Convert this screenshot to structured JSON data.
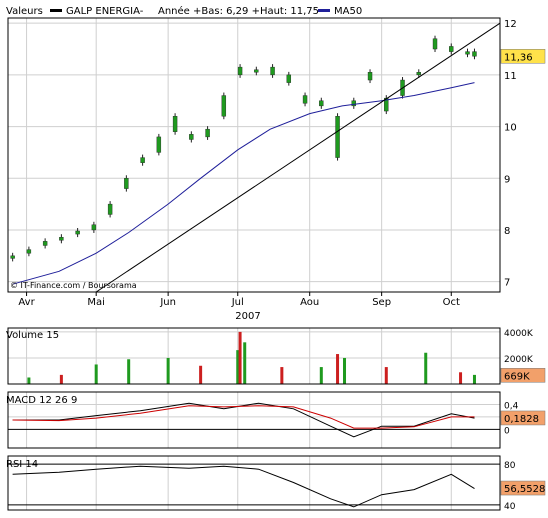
{
  "header": {
    "label": "Valeurs",
    "security": "GALP ENERGIA-",
    "range_text": "Année +Bas: 6,29 +Haut: 11,75",
    "ma_label": "MA50"
  },
  "footer": {
    "credit": "© IT-Finance.com / Boursorama",
    "year": "2007"
  },
  "months": [
    {
      "label": "Avr",
      "x": "2007-04-01"
    },
    {
      "label": "Mai",
      "x": "2007-05-01"
    },
    {
      "label": "Jun",
      "x": "2007-06-01"
    },
    {
      "label": "Jul",
      "x": "2007-07-01"
    },
    {
      "label": "Aou",
      "x": "2007-08-01"
    },
    {
      "label": "Sep",
      "x": "2007-09-01"
    },
    {
      "label": "Oct",
      "x": "2007-10-01"
    }
  ],
  "colors": {
    "up": "#1f9a1f",
    "down": "#cc1f1f",
    "ma": "#1f1f9a",
    "grid": "#cfcfcf",
    "price_tag": "#ffe24a",
    "value_tag": "#f2a06a",
    "macd": "#000000",
    "signal": "#cc0000",
    "rsi": "#000000",
    "frame": "#000000"
  },
  "chart_data": [
    {
      "type": "candlestick",
      "panel": "price",
      "ylim": [
        6.8,
        12.1
      ],
      "yticks": [
        7,
        8,
        9,
        10,
        11,
        12
      ],
      "xlim": [
        "2007-03-24",
        "2007-10-22"
      ],
      "last_value": "11,36",
      "series": [
        {
          "name": "GALP ENERGIA-",
          "points": [
            [
              "2007-03-26",
              7.45,
              7.5
            ],
            [
              "2007-04-02",
              7.55,
              7.62
            ],
            [
              "2007-04-09",
              7.7,
              7.78
            ],
            [
              "2007-04-16",
              7.8,
              7.86
            ],
            [
              "2007-04-23",
              7.92,
              7.98
            ],
            [
              "2007-04-30",
              8.0,
              8.1
            ],
            [
              "2007-05-07",
              8.3,
              8.5
            ],
            [
              "2007-05-14",
              8.8,
              9.0
            ],
            [
              "2007-05-21",
              9.3,
              9.4
            ],
            [
              "2007-05-28",
              9.5,
              9.8
            ],
            [
              "2007-06-04",
              9.9,
              10.2
            ],
            [
              "2007-06-11",
              9.75,
              9.85
            ],
            [
              "2007-06-18",
              9.8,
              9.95
            ],
            [
              "2007-06-25",
              10.2,
              10.6
            ],
            [
              "2007-07-02",
              11.0,
              11.15
            ],
            [
              "2007-07-09",
              11.05,
              11.1
            ],
            [
              "2007-07-16",
              11.0,
              11.15
            ],
            [
              "2007-07-23",
              10.85,
              11.0
            ],
            [
              "2007-07-30",
              10.45,
              10.6
            ],
            [
              "2007-08-06",
              10.4,
              10.5
            ],
            [
              "2007-08-13",
              9.4,
              10.2
            ],
            [
              "2007-08-20",
              10.4,
              10.5
            ],
            [
              "2007-08-27",
              10.9,
              11.05
            ],
            [
              "2007-09-03",
              10.3,
              10.55
            ],
            [
              "2007-09-10",
              10.6,
              10.9
            ],
            [
              "2007-09-17",
              11.0,
              11.05
            ],
            [
              "2007-09-24",
              11.5,
              11.7
            ],
            [
              "2007-10-01",
              11.45,
              11.55
            ],
            [
              "2007-10-08",
              11.4,
              11.45
            ],
            [
              "2007-10-11",
              11.36,
              11.45
            ]
          ]
        },
        {
          "name": "MA50",
          "points": [
            [
              "2007-03-26",
              6.95
            ],
            [
              "2007-04-15",
              7.2
            ],
            [
              "2007-05-01",
              7.55
            ],
            [
              "2007-05-15",
              7.95
            ],
            [
              "2007-06-01",
              8.5
            ],
            [
              "2007-06-15",
              9.0
            ],
            [
              "2007-07-01",
              9.55
            ],
            [
              "2007-07-15",
              9.95
            ],
            [
              "2007-08-01",
              10.25
            ],
            [
              "2007-08-15",
              10.4
            ],
            [
              "2007-09-01",
              10.5
            ],
            [
              "2007-09-15",
              10.6
            ],
            [
              "2007-10-01",
              10.75
            ],
            [
              "2007-10-11",
              10.85
            ]
          ]
        },
        {
          "name": "trendline",
          "points": [
            [
              "2007-05-01",
              6.8
            ],
            [
              "2007-10-22",
              12.0
            ]
          ]
        }
      ]
    },
    {
      "type": "bar",
      "panel": "volume",
      "title": "Volume 15",
      "ylim": [
        0,
        4300000
      ],
      "yticks": [
        {
          "v": 2000000,
          "label": "2000K"
        },
        {
          "v": 4000000,
          "label": "4000K"
        }
      ],
      "last_value": "669K",
      "values": [
        [
          "2007-04-02",
          500000,
          "up"
        ],
        [
          "2007-04-16",
          700000,
          "down"
        ],
        [
          "2007-05-01",
          1500000,
          "up"
        ],
        [
          "2007-05-15",
          1900000,
          "up"
        ],
        [
          "2007-06-01",
          2000000,
          "up"
        ],
        [
          "2007-06-15",
          1400000,
          "down"
        ],
        [
          "2007-07-01",
          2600000,
          "up"
        ],
        [
          "2007-07-02",
          4000000,
          "down"
        ],
        [
          "2007-07-04",
          3200000,
          "up"
        ],
        [
          "2007-07-20",
          1300000,
          "down"
        ],
        [
          "2007-08-06",
          1300000,
          "up"
        ],
        [
          "2007-08-13",
          2300000,
          "down"
        ],
        [
          "2007-08-16",
          2000000,
          "up"
        ],
        [
          "2007-09-03",
          1300000,
          "down"
        ],
        [
          "2007-09-20",
          2400000,
          "up"
        ],
        [
          "2007-10-05",
          900000,
          "down"
        ],
        [
          "2007-10-11",
          700000,
          "up"
        ]
      ]
    },
    {
      "type": "line",
      "panel": "macd",
      "title": "MACD 12 26 9",
      "ylim": [
        -0.3,
        0.6
      ],
      "yticks": [
        {
          "v": 0,
          "label": "0"
        },
        {
          "v": 0.2,
          "label": "0,2"
        },
        {
          "v": 0.4,
          "label": "0,4"
        }
      ],
      "last_value": "0,1828",
      "series": [
        {
          "name": "MACD",
          "points": [
            [
              "2007-03-26",
              0.15
            ],
            [
              "2007-04-15",
              0.15
            ],
            [
              "2007-05-01",
              0.22
            ],
            [
              "2007-05-20",
              0.3
            ],
            [
              "2007-06-10",
              0.42
            ],
            [
              "2007-06-25",
              0.33
            ],
            [
              "2007-07-10",
              0.42
            ],
            [
              "2007-07-25",
              0.33
            ],
            [
              "2007-08-10",
              0.05
            ],
            [
              "2007-08-20",
              -0.12
            ],
            [
              "2007-09-01",
              0.05
            ],
            [
              "2007-09-15",
              0.05
            ],
            [
              "2007-10-01",
              0.25
            ],
            [
              "2007-10-11",
              0.18
            ]
          ]
        },
        {
          "name": "Signal",
          "points": [
            [
              "2007-03-26",
              0.15
            ],
            [
              "2007-04-15",
              0.14
            ],
            [
              "2007-05-01",
              0.18
            ],
            [
              "2007-05-20",
              0.26
            ],
            [
              "2007-06-10",
              0.38
            ],
            [
              "2007-06-25",
              0.36
            ],
            [
              "2007-07-10",
              0.38
            ],
            [
              "2007-07-25",
              0.36
            ],
            [
              "2007-08-10",
              0.18
            ],
            [
              "2007-08-20",
              0.02
            ],
            [
              "2007-09-01",
              0.02
            ],
            [
              "2007-09-15",
              0.04
            ],
            [
              "2007-10-01",
              0.2
            ],
            [
              "2007-10-11",
              0.2
            ]
          ]
        }
      ]
    },
    {
      "type": "line",
      "panel": "rsi",
      "title": "RSI 14",
      "ylim": [
        35,
        88
      ],
      "yticks": [
        {
          "v": 40,
          "label": "40"
        },
        {
          "v": 80,
          "label": "80"
        }
      ],
      "last_value": "56,5528",
      "series": [
        {
          "name": "RSI 14",
          "points": [
            [
              "2007-03-26",
              70
            ],
            [
              "2007-04-15",
              72
            ],
            [
              "2007-05-01",
              75
            ],
            [
              "2007-05-20",
              78
            ],
            [
              "2007-06-10",
              76
            ],
            [
              "2007-06-25",
              78
            ],
            [
              "2007-07-10",
              75
            ],
            [
              "2007-07-25",
              62
            ],
            [
              "2007-08-10",
              46
            ],
            [
              "2007-08-20",
              38
            ],
            [
              "2007-09-01",
              50
            ],
            [
              "2007-09-15",
              55
            ],
            [
              "2007-10-01",
              70
            ],
            [
              "2007-10-11",
              56
            ]
          ]
        }
      ]
    }
  ]
}
